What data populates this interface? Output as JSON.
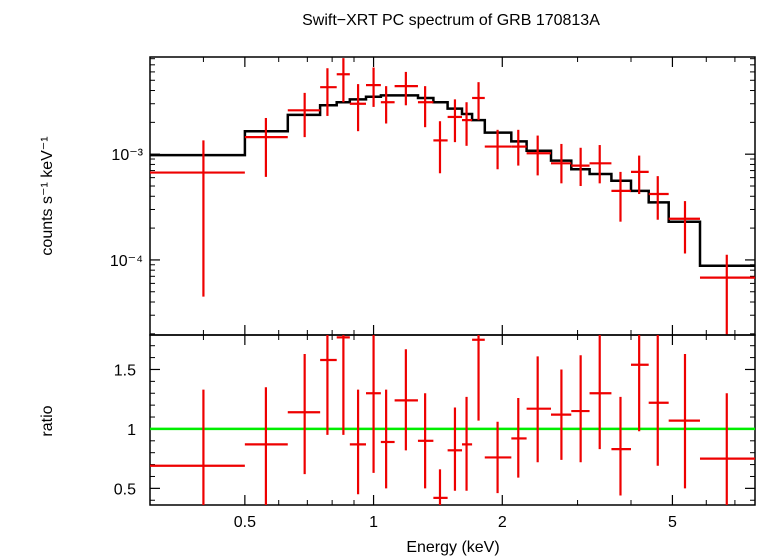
{
  "chart_data": [
    {
      "type": "line",
      "panel": "spectrum",
      "title": "Swift−XRT PC spectrum of GRB 170813A",
      "ylabel": "counts s⁻¹ keV⁻¹",
      "xscale": "log",
      "yscale": "log",
      "xlim": [
        0.3,
        7.8
      ],
      "ylim": [
        1.95e-05,
        0.0083
      ],
      "yticklabels": [
        "10⁻³",
        "10⁻⁴"
      ],
      "series": [
        {
          "color": "#ee0000",
          "style": "errorbars",
          "points": [
            {
              "x": 0.4,
              "xlo": 0.3,
              "xhi": 0.5,
              "y": 0.00067,
              "ylo": 4.5e-05,
              "yhi": 0.00135
            },
            {
              "x": 0.56,
              "xlo": 0.5,
              "xhi": 0.63,
              "y": 0.00145,
              "ylo": 0.00061,
              "yhi": 0.0022
            },
            {
              "x": 0.69,
              "xlo": 0.63,
              "xhi": 0.75,
              "y": 0.0026,
              "ylo": 0.00145,
              "yhi": 0.0038
            },
            {
              "x": 0.78,
              "xlo": 0.75,
              "xhi": 0.82,
              "y": 0.0043,
              "ylo": 0.0023,
              "yhi": 0.0065
            },
            {
              "x": 0.85,
              "xlo": 0.82,
              "xhi": 0.88,
              "y": 0.0057,
              "ylo": 0.0031,
              "yhi": 0.0081
            },
            {
              "x": 0.92,
              "xlo": 0.88,
              "xhi": 0.96,
              "y": 0.003,
              "ylo": 0.00165,
              "yhi": 0.0046
            },
            {
              "x": 1.0,
              "xlo": 0.96,
              "xhi": 1.04,
              "y": 0.0045,
              "ylo": 0.0028,
              "yhi": 0.0066
            },
            {
              "x": 1.07,
              "xlo": 1.04,
              "xhi": 1.12,
              "y": 0.0031,
              "ylo": 0.00195,
              "yhi": 0.0044
            },
            {
              "x": 1.19,
              "xlo": 1.12,
              "xhi": 1.27,
              "y": 0.0044,
              "ylo": 0.0029,
              "yhi": 0.006
            },
            {
              "x": 1.32,
              "xlo": 1.27,
              "xhi": 1.38,
              "y": 0.0031,
              "ylo": 0.0018,
              "yhi": 0.0044
            },
            {
              "x": 1.43,
              "xlo": 1.38,
              "xhi": 1.49,
              "y": 0.00135,
              "ylo": 0.00066,
              "yhi": 0.00205
            },
            {
              "x": 1.55,
              "xlo": 1.49,
              "xhi": 1.61,
              "y": 0.00225,
              "ylo": 0.0013,
              "yhi": 0.0033
            },
            {
              "x": 1.65,
              "xlo": 1.61,
              "xhi": 1.7,
              "y": 0.0021,
              "ylo": 0.0012,
              "yhi": 0.0031
            },
            {
              "x": 1.76,
              "xlo": 1.7,
              "xhi": 1.82,
              "y": 0.0034,
              "ylo": 0.0021,
              "yhi": 0.0048
            },
            {
              "x": 1.95,
              "xlo": 1.82,
              "xhi": 2.1,
              "y": 0.00118,
              "ylo": 0.00072,
              "yhi": 0.0017
            },
            {
              "x": 2.18,
              "xlo": 2.1,
              "xhi": 2.28,
              "y": 0.00118,
              "ylo": 0.00078,
              "yhi": 0.0017
            },
            {
              "x": 2.42,
              "xlo": 2.28,
              "xhi": 2.6,
              "y": 0.00102,
              "ylo": 0.00063,
              "yhi": 0.0015
            },
            {
              "x": 2.75,
              "xlo": 2.6,
              "xhi": 2.9,
              "y": 0.00082,
              "ylo": 0.00053,
              "yhi": 0.00125
            },
            {
              "x": 3.05,
              "xlo": 2.9,
              "xhi": 3.2,
              "y": 0.00078,
              "ylo": 0.0005,
              "yhi": 0.00115
            },
            {
              "x": 3.38,
              "xlo": 3.2,
              "xhi": 3.6,
              "y": 0.00082,
              "ylo": 0.00053,
              "yhi": 0.00122
            },
            {
              "x": 3.78,
              "xlo": 3.6,
              "xhi": 4.0,
              "y": 0.00045,
              "ylo": 0.00023,
              "yhi": 0.00068
            },
            {
              "x": 4.18,
              "xlo": 4.0,
              "xhi": 4.4,
              "y": 0.00068,
              "ylo": 0.00042,
              "yhi": 0.00097
            },
            {
              "x": 4.62,
              "xlo": 4.4,
              "xhi": 4.9,
              "y": 0.00042,
              "ylo": 0.00024,
              "yhi": 0.00062
            },
            {
              "x": 5.35,
              "xlo": 4.9,
              "xhi": 5.8,
              "y": 0.000245,
              "ylo": 0.000115,
              "yhi": 0.00036
            },
            {
              "x": 6.7,
              "xlo": 5.8,
              "xhi": 7.8,
              "y": 6.8e-05,
              "ylo": 1.6e-05,
              "yhi": 0.000112
            }
          ]
        },
        {
          "color": "#000000",
          "style": "steps",
          "edges": [
            0.3,
            0.5,
            0.63,
            0.75,
            0.82,
            0.88,
            0.96,
            1.04,
            1.12,
            1.27,
            1.38,
            1.49,
            1.61,
            1.7,
            1.82,
            2.1,
            2.28,
            2.6,
            2.9,
            3.2,
            3.6,
            4.0,
            4.4,
            4.9,
            5.8,
            7.8
          ],
          "values": [
            0.00098,
            0.00165,
            0.00235,
            0.0029,
            0.0031,
            0.0033,
            0.0035,
            0.0036,
            0.0036,
            0.0034,
            0.0031,
            0.0027,
            0.0024,
            0.0021,
            0.0016,
            0.00132,
            0.00108,
            0.00087,
            0.00072,
            0.00065,
            0.00056,
            0.00045,
            0.00035,
            0.00023,
            8.8e-05
          ]
        }
      ]
    },
    {
      "type": "line",
      "panel": "ratio",
      "xlabel": "Energy (keV)",
      "ylabel": "ratio",
      "xscale": "log",
      "xlim": [
        0.3,
        7.8
      ],
      "ylim": [
        0.36,
        1.79
      ],
      "yticks": [
        0.5,
        1,
        1.5
      ],
      "yticklabels": [
        "0.5",
        "1",
        "1.5"
      ],
      "xticks": [
        0.5,
        1,
        2,
        5
      ],
      "xticklabels": [
        "0.5",
        "1",
        "2",
        "5"
      ],
      "reference_line": {
        "y": 1,
        "color": "#00ee00"
      },
      "series": [
        {
          "color": "#ee0000",
          "style": "errorbars",
          "points": [
            {
              "x": 0.4,
              "xlo": 0.3,
              "xhi": 0.5,
              "y": 0.69,
              "ylo": 0.36,
              "yhi": 1.33
            },
            {
              "x": 0.56,
              "xlo": 0.5,
              "xhi": 0.63,
              "y": 0.87,
              "ylo": 0.36,
              "yhi": 1.35
            },
            {
              "x": 0.69,
              "xlo": 0.63,
              "xhi": 0.75,
              "y": 1.14,
              "ylo": 0.62,
              "yhi": 1.63
            },
            {
              "x": 0.78,
              "xlo": 0.75,
              "xhi": 0.82,
              "y": 1.58,
              "ylo": 0.95,
              "yhi": 1.79
            },
            {
              "x": 0.85,
              "xlo": 0.82,
              "xhi": 0.88,
              "y": 1.77,
              "ylo": 0.95,
              "yhi": 1.79
            },
            {
              "x": 0.92,
              "xlo": 0.88,
              "xhi": 0.96,
              "y": 0.87,
              "ylo": 0.45,
              "yhi": 1.33
            },
            {
              "x": 1.0,
              "xlo": 0.96,
              "xhi": 1.04,
              "y": 1.3,
              "ylo": 0.63,
              "yhi": 1.79
            },
            {
              "x": 1.07,
              "xlo": 1.04,
              "xhi": 1.12,
              "y": 0.89,
              "ylo": 0.5,
              "yhi": 1.33
            },
            {
              "x": 1.19,
              "xlo": 1.12,
              "xhi": 1.27,
              "y": 1.24,
              "ylo": 0.82,
              "yhi": 1.67
            },
            {
              "x": 1.32,
              "xlo": 1.27,
              "xhi": 1.38,
              "y": 0.9,
              "ylo": 0.5,
              "yhi": 1.3
            },
            {
              "x": 1.43,
              "xlo": 1.38,
              "xhi": 1.49,
              "y": 0.42,
              "ylo": 0.36,
              "yhi": 0.66
            },
            {
              "x": 1.55,
              "xlo": 1.49,
              "xhi": 1.61,
              "y": 0.82,
              "ylo": 0.48,
              "yhi": 1.18
            },
            {
              "x": 1.65,
              "xlo": 1.61,
              "xhi": 1.7,
              "y": 0.87,
              "ylo": 0.48,
              "yhi": 1.27
            },
            {
              "x": 1.76,
              "xlo": 1.7,
              "xhi": 1.82,
              "y": 1.75,
              "ylo": 1.07,
              "yhi": 1.79
            },
            {
              "x": 1.95,
              "xlo": 1.82,
              "xhi": 2.1,
              "y": 0.76,
              "ylo": 0.46,
              "yhi": 1.06
            },
            {
              "x": 2.18,
              "xlo": 2.1,
              "xhi": 2.28,
              "y": 0.92,
              "ylo": 0.59,
              "yhi": 1.26
            },
            {
              "x": 2.42,
              "xlo": 2.28,
              "xhi": 2.6,
              "y": 1.17,
              "ylo": 0.72,
              "yhi": 1.61
            },
            {
              "x": 2.75,
              "xlo": 2.6,
              "xhi": 2.9,
              "y": 1.12,
              "ylo": 0.74,
              "yhi": 1.5
            },
            {
              "x": 3.05,
              "xlo": 2.9,
              "xhi": 3.2,
              "y": 1.15,
              "ylo": 0.72,
              "yhi": 1.62
            },
            {
              "x": 3.38,
              "xlo": 3.2,
              "xhi": 3.6,
              "y": 1.3,
              "ylo": 0.83,
              "yhi": 1.79
            },
            {
              "x": 3.78,
              "xlo": 3.6,
              "xhi": 4.0,
              "y": 0.83,
              "ylo": 0.44,
              "yhi": 1.27
            },
            {
              "x": 4.18,
              "xlo": 4.0,
              "xhi": 4.4,
              "y": 1.54,
              "ylo": 0.98,
              "yhi": 1.79
            },
            {
              "x": 4.62,
              "xlo": 4.4,
              "xhi": 4.9,
              "y": 1.22,
              "ylo": 0.69,
              "yhi": 1.79
            },
            {
              "x": 5.35,
              "xlo": 4.9,
              "xhi": 5.8,
              "y": 1.07,
              "ylo": 0.5,
              "yhi": 1.63
            },
            {
              "x": 6.7,
              "xlo": 5.8,
              "xhi": 7.8,
              "y": 0.75,
              "ylo": 0.36,
              "yhi": 1.3
            }
          ]
        }
      ]
    }
  ]
}
